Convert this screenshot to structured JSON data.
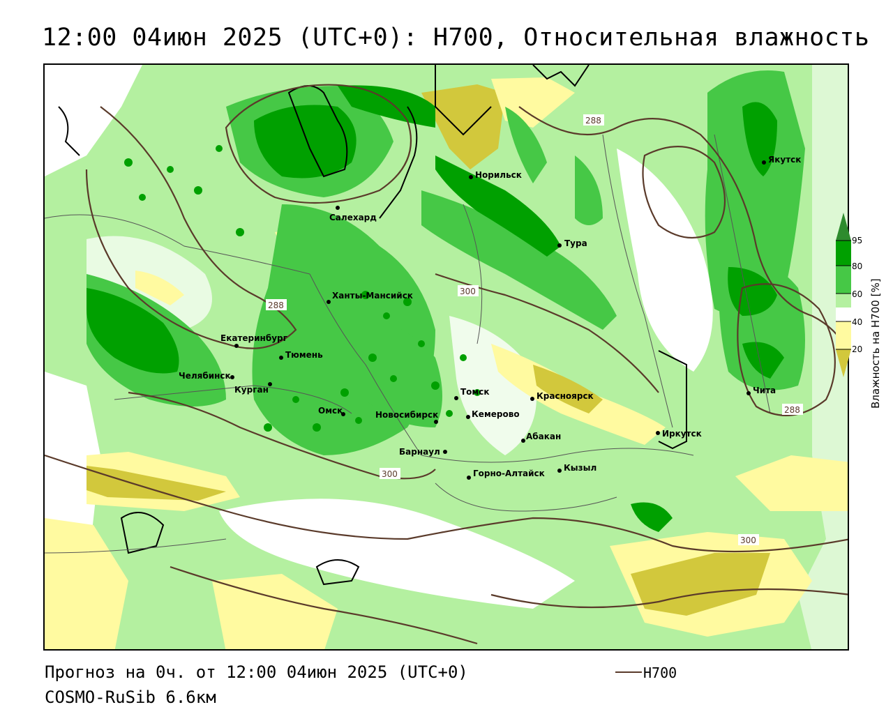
{
  "title": "12:00 04июн 2025 (UTC+0): H700, Относительная влажность",
  "footer": {
    "forecast": "Прогноз на 0ч. от 12:00 04июн 2025 (UTC+0)",
    "model": "COSMO-RuSib 6.6км"
  },
  "legend": {
    "line_label": "H700",
    "line_color": "#5a3a2a"
  },
  "colorbar": {
    "title": "Влажность на H700 [%]",
    "ticks": [
      "95",
      "80",
      "60",
      "40",
      "20"
    ],
    "colors": {
      "c95": "#2e8b2e",
      "c80": "#00a000",
      "c60": "#46c846",
      "c50": "#b4f0a0",
      "c40": "#ffffff",
      "c30": "#fffaa0",
      "c20": "#f0e060",
      "c10": "#d2c83c"
    }
  },
  "isolines": [
    "288",
    "288",
    "288",
    "300",
    "300",
    "300"
  ],
  "cities": [
    {
      "name": "Норильск"
    },
    {
      "name": "Якутск"
    },
    {
      "name": "Салехард"
    },
    {
      "name": "Тура"
    },
    {
      "name": "Ханты-Мансийск"
    },
    {
      "name": "Екатеринбург"
    },
    {
      "name": "Тюмень"
    },
    {
      "name": "Челябинск"
    },
    {
      "name": "Курган"
    },
    {
      "name": "Омск"
    },
    {
      "name": "Новосибирск"
    },
    {
      "name": "Томск"
    },
    {
      "name": "Кемерово"
    },
    {
      "name": "Красноярск"
    },
    {
      "name": "Барнаул"
    },
    {
      "name": "Абакан"
    },
    {
      "name": "Иркутск"
    },
    {
      "name": "Чита"
    },
    {
      "name": "Кызыл"
    },
    {
      "name": "Горно-Алтайск"
    }
  ]
}
